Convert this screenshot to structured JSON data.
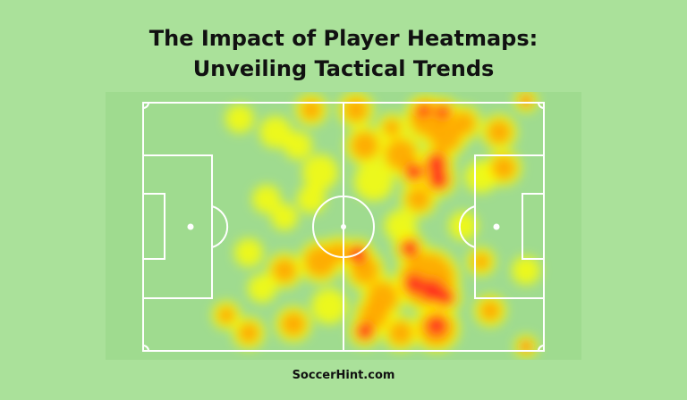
{
  "header": {
    "title_line1": "The Impact of Player Heatmaps:",
    "title_line2": "Unveiling Tactical Trends"
  },
  "heatmap": {
    "colors": {
      "low": "#ffff00",
      "mid": "#ffa500",
      "high": "#ff2020"
    },
    "pitch_color": "#9fdb8f",
    "line_color": "#ffffff"
  },
  "footer": {
    "site": "SoccerHint.com"
  },
  "colors": {
    "background": "#aae19a"
  }
}
